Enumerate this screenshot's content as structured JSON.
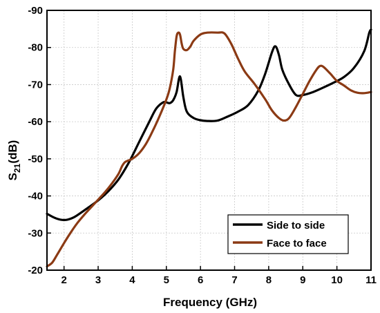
{
  "chart_data": {
    "type": "line",
    "xlabel": "Frequency (GHz)",
    "ylabel_main": "S",
    "ylabel_sub": "21",
    "ylabel_suffix": "(dB)",
    "xlim": [
      1.5,
      11
    ],
    "ylim": [
      -20,
      -90
    ],
    "x_ticks": [
      2,
      3,
      4,
      5,
      6,
      7,
      8,
      9,
      10,
      11
    ],
    "x_tick_labels": [
      "2",
      "3",
      "4",
      "5",
      "6",
      "7",
      "8",
      "9",
      "10",
      "11"
    ],
    "y_ticks": [
      -20,
      -30,
      -40,
      -50,
      -60,
      -70,
      -80,
      -90
    ],
    "y_tick_labels": [
      "-20",
      "-30",
      "-40",
      "-50",
      "-60",
      "-70",
      "-80",
      "-90"
    ],
    "grid": true,
    "legend_position": "bottom-right",
    "series": [
      {
        "name": "Side to side",
        "color": "#000000",
        "x": [
          1.5,
          1.7,
          1.9,
          2.1,
          2.3,
          2.5,
          2.7,
          3.0,
          3.3,
          3.6,
          3.9,
          4.2,
          4.5,
          4.7,
          4.9,
          5.0,
          5.1,
          5.2,
          5.3,
          5.4,
          5.5,
          5.6,
          5.8,
          6.0,
          6.2,
          6.5,
          6.8,
          7.1,
          7.4,
          7.7,
          7.9,
          8.1,
          8.2,
          8.3,
          8.4,
          8.6,
          8.8,
          9.0,
          9.3,
          9.6,
          9.9,
          10.2,
          10.5,
          10.8,
          10.95,
          11.0
        ],
        "values": [
          -35.2,
          -34.2,
          -33.6,
          -33.6,
          -34.3,
          -35.5,
          -36.8,
          -38.8,
          -41.3,
          -44.5,
          -49.0,
          -54.5,
          -60.0,
          -63.5,
          -65.2,
          -65.2,
          -65.0,
          -65.8,
          -68.0,
          -72.2,
          -66.5,
          -62.7,
          -61.0,
          -60.4,
          -60.2,
          -60.3,
          -61.4,
          -62.7,
          -64.5,
          -68.5,
          -73.0,
          -78.8,
          -80.3,
          -78.0,
          -74.0,
          -70.0,
          -67.2,
          -67.2,
          -68.0,
          -69.2,
          -70.5,
          -72.0,
          -74.5,
          -79.0,
          -84.0,
          -84.8
        ]
      },
      {
        "name": "Face to face",
        "color": "#8b3a14",
        "x": [
          1.5,
          1.65,
          1.8,
          2.0,
          2.2,
          2.4,
          2.6,
          2.8,
          3.0,
          3.2,
          3.4,
          3.6,
          3.7,
          3.8,
          4.0,
          4.2,
          4.4,
          4.6,
          4.8,
          5.0,
          5.1,
          5.2,
          5.25,
          5.3,
          5.35,
          5.4,
          5.45,
          5.5,
          5.6,
          5.7,
          5.8,
          6.0,
          6.2,
          6.5,
          6.7,
          6.9,
          7.1,
          7.3,
          7.6,
          7.9,
          8.1,
          8.3,
          8.45,
          8.6,
          8.8,
          9.0,
          9.2,
          9.4,
          9.5,
          9.6,
          9.8,
          10.0,
          10.2,
          10.4,
          10.6,
          10.8,
          11.0
        ],
        "values": [
          -21.0,
          -22.0,
          -24.2,
          -27.3,
          -30.2,
          -32.8,
          -35.0,
          -37.0,
          -39.0,
          -41.0,
          -43.3,
          -46.0,
          -48.0,
          -49.2,
          -50.0,
          -51.5,
          -54.0,
          -57.5,
          -61.5,
          -66.0,
          -69.0,
          -74.0,
          -79.0,
          -83.0,
          -84.0,
          -83.5,
          -81.0,
          -79.6,
          -79.3,
          -80.2,
          -81.8,
          -83.5,
          -84.0,
          -84.0,
          -83.8,
          -81.0,
          -77.0,
          -73.5,
          -70.0,
          -66.0,
          -63.0,
          -61.0,
          -60.3,
          -61.0,
          -64.0,
          -67.5,
          -71.0,
          -74.0,
          -75.0,
          -74.8,
          -73.0,
          -71.0,
          -69.8,
          -68.5,
          -67.8,
          -67.7,
          -68.0
        ]
      }
    ]
  }
}
